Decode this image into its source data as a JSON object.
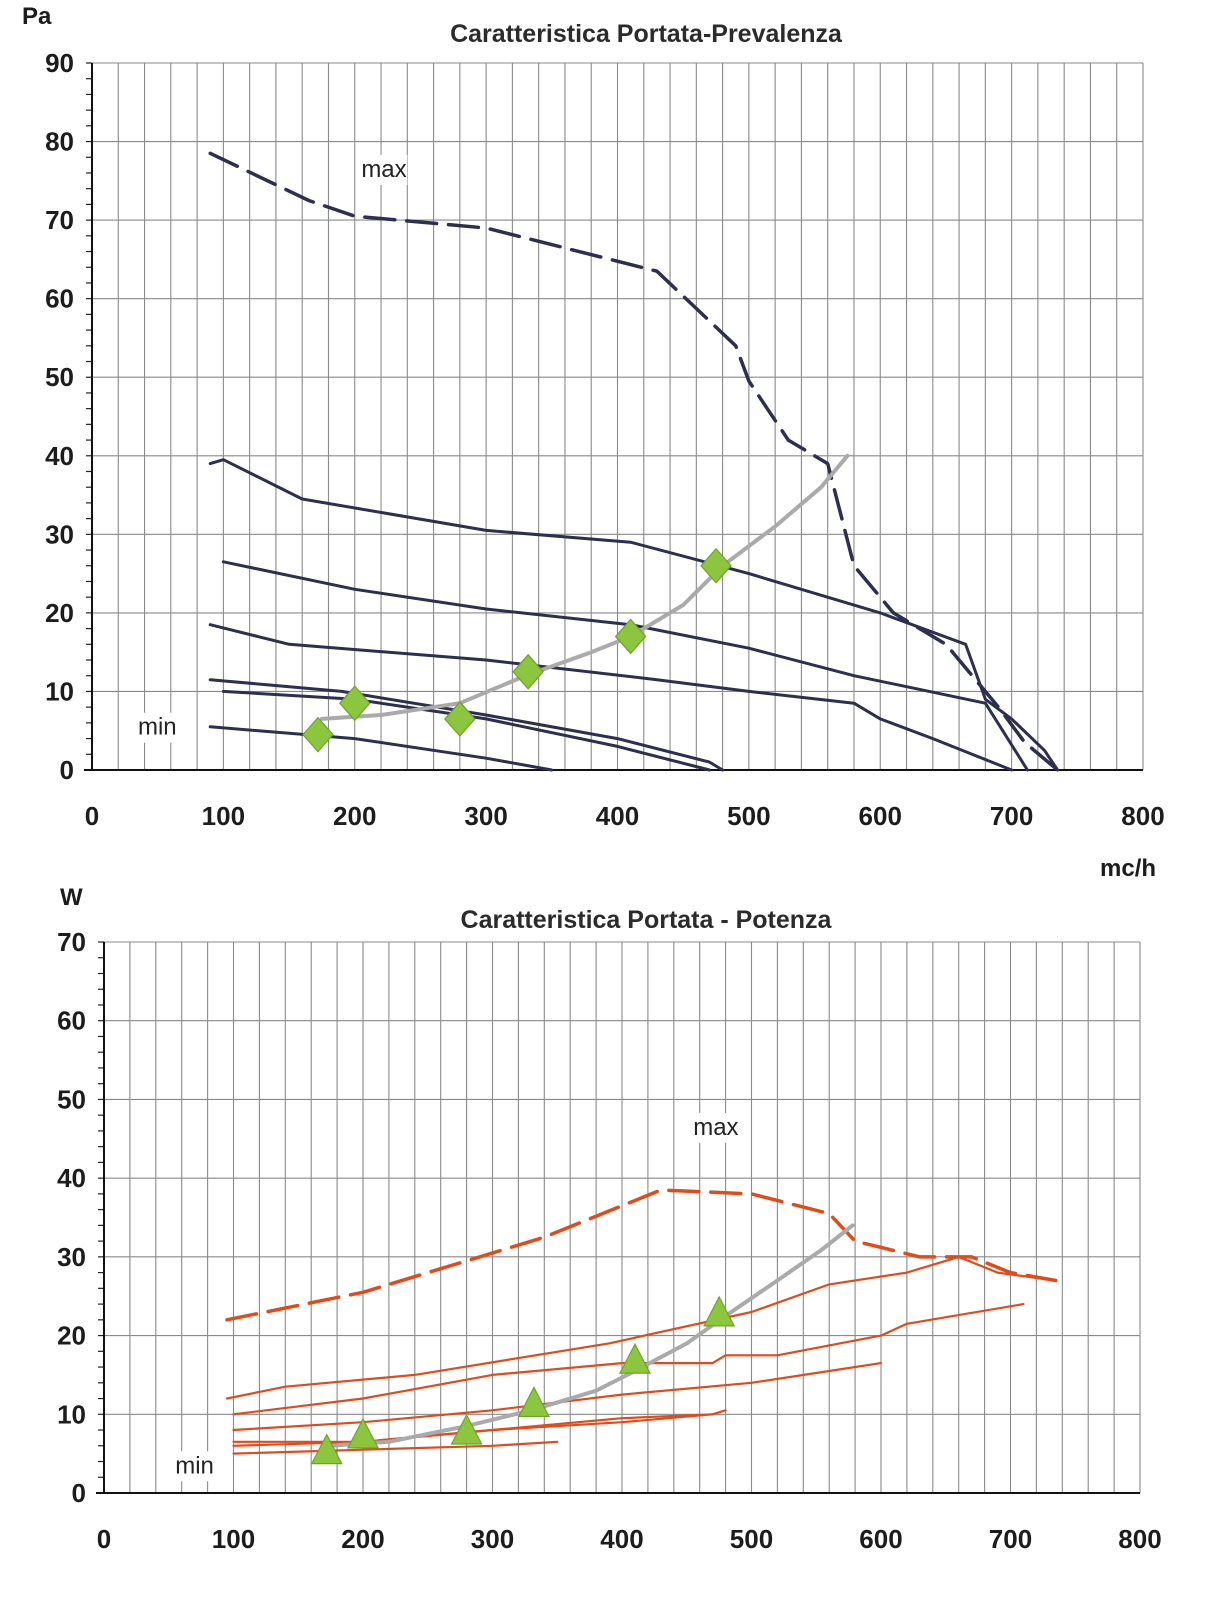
{
  "chart_data": [
    {
      "type": "line",
      "title": "Caratteristica Portata-Prevalenza",
      "ylabel": "Pa",
      "xlabel": "mc/h",
      "xlim": [
        0,
        800
      ],
      "ylim": [
        0,
        90
      ],
      "x_ticks": [
        0,
        100,
        200,
        300,
        400,
        500,
        600,
        700,
        800
      ],
      "y_ticks": [
        0,
        10,
        20,
        30,
        40,
        50,
        60,
        70,
        80,
        90
      ],
      "grid": true,
      "colors": {
        "curves": "#2c2f4e",
        "system": "#aaaaaa",
        "markers": "#8cc63f",
        "grid": "#8a8a8a"
      },
      "annotations": [
        {
          "text": "max",
          "x": 205,
          "y": 75.5
        },
        {
          "text": "min",
          "x": 35,
          "y": 4.5
        }
      ],
      "series": [
        {
          "style": "dashed",
          "points": [
            [
              90,
              78.5
            ],
            [
              165,
              72.5
            ],
            [
              200,
              70.5
            ],
            [
              300,
              69
            ],
            [
              430,
              63.5
            ],
            [
              490,
              54
            ],
            [
              500,
              49.5
            ],
            [
              530,
              42
            ],
            [
              560,
              39
            ],
            [
              580,
              26
            ],
            [
              610,
              20
            ],
            [
              650,
              16
            ],
            [
              690,
              8
            ],
            [
              710,
              3.5
            ],
            [
              735,
              0
            ]
          ]
        },
        {
          "style": "solid",
          "points": [
            [
              90,
              39
            ],
            [
              100,
              39.5
            ],
            [
              160,
              34.5
            ],
            [
              300,
              30.5
            ],
            [
              410,
              29
            ],
            [
              500,
              25
            ],
            [
              600,
              20
            ],
            [
              665,
              16
            ],
            [
              680,
              9
            ],
            [
              700,
              6.5
            ],
            [
              725,
              2.5
            ],
            [
              735,
              0
            ]
          ]
        },
        {
          "style": "solid",
          "points": [
            [
              100,
              26.5
            ],
            [
              200,
              23
            ],
            [
              300,
              20.5
            ],
            [
              410,
              18.5
            ],
            [
              500,
              15.5
            ],
            [
              580,
              12
            ],
            [
              680,
              8.5
            ],
            [
              712,
              0
            ]
          ]
        },
        {
          "style": "solid",
          "points": [
            [
              90,
              18.5
            ],
            [
              150,
              16
            ],
            [
              300,
              14
            ],
            [
              430,
              11.5
            ],
            [
              500,
              10
            ],
            [
              580,
              8.5
            ],
            [
              600,
              6.5
            ],
            [
              640,
              4
            ],
            [
              700,
              0
            ]
          ]
        },
        {
          "style": "solid",
          "points": [
            [
              90,
              11.5
            ],
            [
              190,
              10
            ],
            [
              300,
              7
            ],
            [
              400,
              4
            ],
            [
              470,
              1
            ],
            [
              480,
              0
            ]
          ]
        },
        {
          "style": "solid",
          "points": [
            [
              100,
              10
            ],
            [
              200,
              9
            ],
            [
              300,
              6.5
            ],
            [
              400,
              3
            ],
            [
              470,
              0
            ]
          ]
        },
        {
          "style": "solid",
          "points": [
            [
              90,
              5.5
            ],
            [
              200,
              4
            ],
            [
              300,
              1.5
            ],
            [
              350,
              0
            ]
          ]
        },
        {
          "style": "system",
          "points": [
            [
              175,
              6.5
            ],
            [
              220,
              7
            ],
            [
              280,
              8.5
            ],
            [
              330,
              12
            ],
            [
              380,
              15
            ],
            [
              410,
              17
            ],
            [
              450,
              21
            ],
            [
              480,
              26
            ],
            [
              520,
              31
            ],
            [
              555,
              36
            ],
            [
              575,
              40
            ]
          ]
        }
      ],
      "operating_points": [
        [
          172,
          4.5
        ],
        [
          200,
          8.5
        ],
        [
          280,
          6.5
        ],
        [
          332,
          12.5
        ],
        [
          410,
          17
        ],
        [
          475,
          26
        ]
      ]
    },
    {
      "type": "line",
      "title": "Caratteristica Portata - Potenza",
      "ylabel": "W",
      "xlabel": "",
      "xlim": [
        0,
        800
      ],
      "ylim": [
        0,
        70
      ],
      "x_ticks": [
        0,
        100,
        200,
        300,
        400,
        500,
        600,
        700,
        800
      ],
      "y_ticks": [
        0,
        10,
        20,
        30,
        40,
        50,
        60,
        70
      ],
      "grid": true,
      "colors": {
        "curves": "#e24a1a",
        "system": "#aaaaaa",
        "markers": "#8cc63f",
        "grid": "#8a8a8a"
      },
      "annotations": [
        {
          "text": "max",
          "x": 455,
          "y": 45.5
        },
        {
          "text": "min",
          "x": 55,
          "y": 2.5
        }
      ],
      "series": [
        {
          "style": "dashed",
          "points": [
            [
              95,
              22
            ],
            [
              200,
              25.5
            ],
            [
              290,
              30
            ],
            [
              340,
              32.5
            ],
            [
              430,
              38.5
            ],
            [
              500,
              38
            ],
            [
              560,
              35.5
            ],
            [
              580,
              32
            ],
            [
              630,
              30
            ],
            [
              670,
              30
            ],
            [
              700,
              28
            ],
            [
              735,
              27
            ]
          ]
        },
        {
          "style": "solid",
          "points": [
            [
              95,
              12
            ],
            [
              140,
              13.5
            ],
            [
              240,
              15
            ],
            [
              390,
              19
            ],
            [
              500,
              23
            ],
            [
              560,
              26.5
            ],
            [
              620,
              28
            ],
            [
              660,
              30
            ],
            [
              690,
              28
            ],
            [
              735,
              27
            ]
          ]
        },
        {
          "style": "solid",
          "points": [
            [
              100,
              10
            ],
            [
              200,
              12
            ],
            [
              300,
              15
            ],
            [
              400,
              16.5
            ],
            [
              470,
              16.5
            ],
            [
              480,
              17.5
            ],
            [
              520,
              17.5
            ],
            [
              600,
              20
            ],
            [
              620,
              21.5
            ],
            [
              710,
              24
            ]
          ]
        },
        {
          "style": "solid",
          "points": [
            [
              100,
              8
            ],
            [
              200,
              9
            ],
            [
              300,
              10.5
            ],
            [
              400,
              12.5
            ],
            [
              500,
              14
            ],
            [
              560,
              15.5
            ],
            [
              600,
              16.5
            ]
          ]
        },
        {
          "style": "solid",
          "points": [
            [
              100,
              6.5
            ],
            [
              200,
              6.5
            ],
            [
              300,
              8
            ],
            [
              400,
              9
            ],
            [
              470,
              10
            ],
            [
              480,
              10.5
            ]
          ]
        },
        {
          "style": "solid",
          "points": [
            [
              100,
              6
            ],
            [
              200,
              6.5
            ],
            [
              300,
              8
            ],
            [
              400,
              9.5
            ],
            [
              470,
              10
            ]
          ]
        },
        {
          "style": "solid",
          "points": [
            [
              100,
              5
            ],
            [
              200,
              5.5
            ],
            [
              300,
              6
            ],
            [
              350,
              6.5
            ]
          ]
        },
        {
          "style": "system",
          "points": [
            [
              175,
              6
            ],
            [
              220,
              6.5
            ],
            [
              280,
              8.5
            ],
            [
              330,
              10.5
            ],
            [
              380,
              13
            ],
            [
              410,
              15.5
            ],
            [
              450,
              19
            ],
            [
              480,
              22.5
            ],
            [
              520,
              27
            ],
            [
              555,
              31
            ],
            [
              578,
              34
            ]
          ]
        }
      ],
      "operating_points": [
        [
          172,
          5
        ],
        [
          200,
          7
        ],
        [
          280,
          7.5
        ],
        [
          332,
          11
        ],
        [
          410,
          16.5
        ],
        [
          475,
          22.5
        ]
      ]
    }
  ]
}
